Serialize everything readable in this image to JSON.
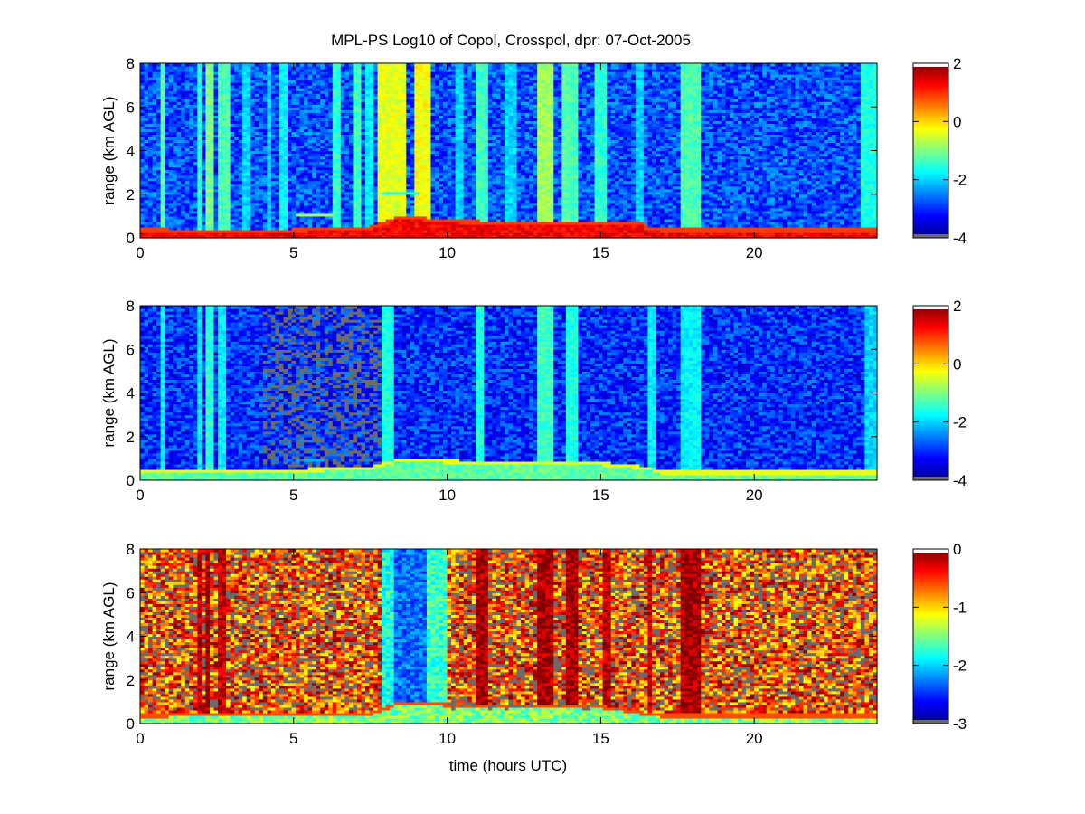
{
  "figure_title": "MPL-PS Log10 of Copol, Crosspol, dpr: 07-Oct-2005",
  "chart_data": [
    {
      "type": "heatmap",
      "name": "copol",
      "xlabel": "",
      "ylabel": "range (km AGL)",
      "xlim": [
        0,
        24
      ],
      "ylim": [
        0,
        8
      ],
      "xticks": [
        0,
        5,
        10,
        15,
        20
      ],
      "yticks": [
        0,
        2,
        4,
        6,
        8
      ],
      "colorbar": {
        "range": [
          -4,
          2
        ],
        "ticks": [
          2,
          0,
          -2,
          -4
        ]
      },
      "background_level": -2.8,
      "blh_km": [
        [
          0,
          0.3
        ],
        [
          4,
          0.25
        ],
        [
          7.5,
          0.4
        ],
        [
          8.5,
          0.9
        ],
        [
          10,
          0.7
        ],
        [
          13,
          0.6
        ],
        [
          15,
          0.65
        ],
        [
          16.3,
          0.6
        ],
        [
          16.5,
          0.4
        ],
        [
          17,
          0.3
        ],
        [
          24,
          0.3
        ]
      ],
      "columns": [
        [
          0.65,
          0.85,
          -1.2
        ],
        [
          1.8,
          2.0,
          -1.5
        ],
        [
          2.1,
          2.4,
          -1.0
        ],
        [
          2.6,
          2.9,
          -1.3
        ],
        [
          3.4,
          3.6,
          -2.0
        ],
        [
          4.1,
          4.3,
          -2.0
        ],
        [
          4.6,
          4.75,
          -1.8
        ],
        [
          6.3,
          6.5,
          -1.5
        ],
        [
          6.9,
          7.2,
          -1.4
        ],
        [
          7.3,
          7.6,
          -1.8
        ],
        [
          7.8,
          8.6,
          -0.4
        ],
        [
          8.9,
          9.5,
          -0.3
        ],
        [
          10.3,
          10.5,
          -2.0
        ],
        [
          11.0,
          11.3,
          -1.4
        ],
        [
          11.9,
          12.2,
          -2.0
        ],
        [
          12.9,
          13.5,
          -0.8
        ],
        [
          13.7,
          13.8,
          -1.2
        ],
        [
          13.9,
          14.3,
          -1.3
        ],
        [
          14.8,
          15.2,
          -1.5
        ],
        [
          16.2,
          16.4,
          -2.0
        ],
        [
          17.6,
          18.2,
          -1.3
        ],
        [
          23.5,
          24.0,
          -1.6
        ]
      ],
      "features": [
        [
          5.1,
          6.3,
          1.0,
          1.1,
          -0.8
        ],
        [
          7.9,
          9.0,
          2.0,
          2.1,
          -1.5
        ]
      ]
    },
    {
      "type": "heatmap",
      "name": "crosspol",
      "xlabel": "",
      "ylabel": "range (km AGL)",
      "xlim": [
        0,
        24
      ],
      "ylim": [
        0,
        8
      ],
      "xticks": [
        0,
        5,
        10,
        15,
        20
      ],
      "yticks": [
        0,
        2,
        4,
        6,
        8
      ],
      "colorbar": {
        "range": [
          -4,
          2
        ],
        "ticks": [
          2,
          0,
          -2,
          -4
        ]
      },
      "background_level": -3.0,
      "blh_km": [
        [
          0,
          0.35
        ],
        [
          4,
          0.35
        ],
        [
          7.5,
          0.5
        ],
        [
          8.5,
          0.9
        ],
        [
          10,
          0.8
        ],
        [
          13,
          0.7
        ],
        [
          15,
          0.7
        ],
        [
          16.5,
          0.5
        ],
        [
          17,
          0.3
        ],
        [
          24,
          0.3
        ]
      ],
      "columns": [
        [
          0.7,
          0.85,
          -1.8
        ],
        [
          1.8,
          2.0,
          -1.8
        ],
        [
          2.1,
          2.4,
          -1.5
        ],
        [
          2.6,
          2.8,
          -1.8
        ],
        [
          7.9,
          8.2,
          -1.6
        ],
        [
          10.9,
          11.2,
          -1.6
        ],
        [
          12.9,
          13.5,
          -1.4
        ],
        [
          13.9,
          14.3,
          -1.6
        ],
        [
          16.6,
          16.8,
          -1.8
        ],
        [
          17.6,
          18.2,
          -1.8
        ],
        [
          23.6,
          24.0,
          -2.0
        ]
      ],
      "features": [
        [
          5.1,
          6.0,
          0.9,
          1.0,
          -2.2
        ]
      ]
    },
    {
      "type": "heatmap",
      "name": "dpr",
      "xlabel": "time (hours UTC)",
      "ylabel": "range (km AGL)",
      "xlim": [
        0,
        24
      ],
      "ylim": [
        0,
        8
      ],
      "xticks": [
        0,
        5,
        10,
        15,
        20
      ],
      "yticks": [
        0,
        2,
        4,
        6,
        8
      ],
      "colorbar": {
        "range": [
          -3,
          0
        ],
        "ticks": [
          0,
          -1,
          -2,
          -3
        ]
      },
      "background_level": -0.6,
      "blh_km": [
        [
          0,
          0.3
        ],
        [
          7.5,
          0.4
        ],
        [
          8.5,
          0.9
        ],
        [
          10,
          0.8
        ],
        [
          15,
          0.7
        ],
        [
          17,
          0.3
        ],
        [
          24,
          0.3
        ]
      ],
      "columns": [
        [
          1.8,
          2.0,
          -0.2
        ],
        [
          2.1,
          2.3,
          -0.1
        ],
        [
          2.6,
          2.8,
          -0.2
        ],
        [
          7.9,
          8.2,
          -1.8
        ],
        [
          8.3,
          9.3,
          -2.3
        ],
        [
          9.4,
          10.0,
          -1.7
        ],
        [
          10.9,
          11.3,
          -0.1
        ],
        [
          12.9,
          13.5,
          -0.1
        ],
        [
          13.9,
          14.3,
          -0.1
        ],
        [
          15.1,
          15.3,
          -0.2
        ],
        [
          16.5,
          16.7,
          -0.2
        ],
        [
          17.6,
          18.2,
          -0.1
        ]
      ],
      "features": []
    }
  ]
}
